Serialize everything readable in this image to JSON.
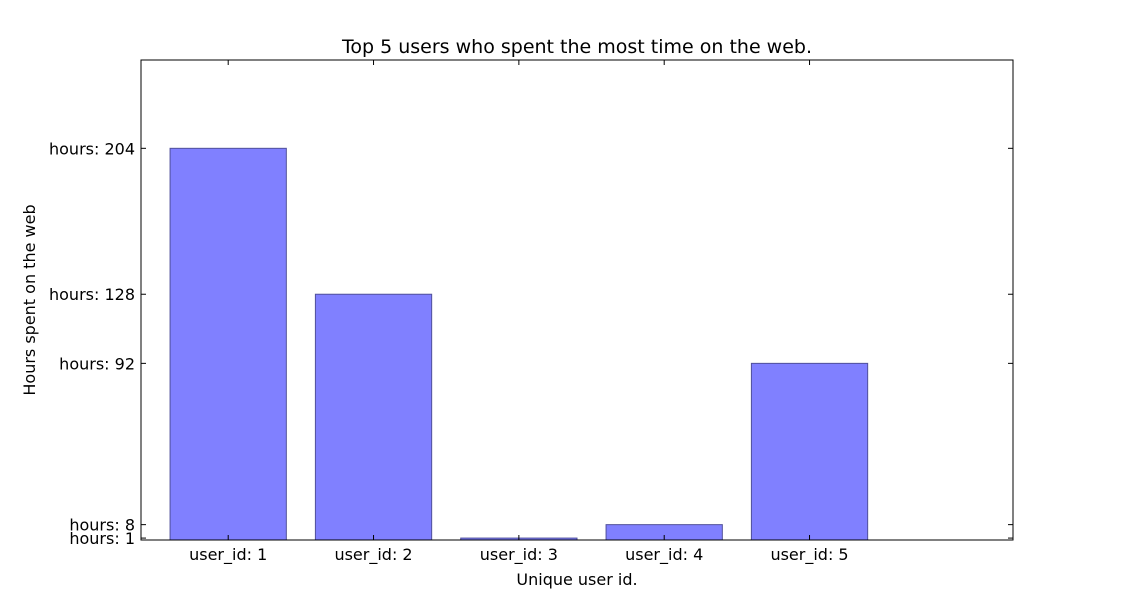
{
  "chart_data": {
    "type": "bar",
    "title": "Top 5 users who spent the most time on the web.",
    "xlabel": "Unique user id.",
    "ylabel": "Hours spent on the web",
    "categories": [
      "user_id: 1",
      "user_id: 2",
      "user_id: 3",
      "user_id: 4",
      "user_id: 5"
    ],
    "values": [
      204,
      128,
      1,
      8,
      92
    ],
    "yticks": [
      {
        "value": 1,
        "label": "hours: 1"
      },
      {
        "value": 8,
        "label": "hours: 8"
      },
      {
        "value": 92,
        "label": "hours: 92"
      },
      {
        "value": 128,
        "label": "hours: 128"
      },
      {
        "value": 204,
        "label": "hours: 204"
      }
    ],
    "ylim": [
      0,
      250
    ],
    "xlim": [
      -0.6,
      5.4
    ],
    "grid": false,
    "colors": {
      "bar_fill": "#8080ff",
      "bar_stroke": "#50509a",
      "axis": "#000000",
      "background": "#ffffff"
    }
  }
}
